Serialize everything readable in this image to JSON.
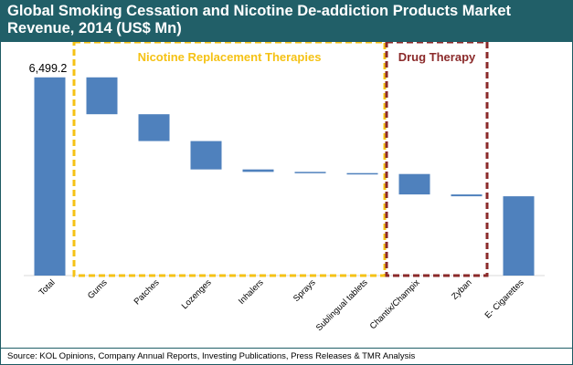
{
  "title": {
    "line1": "Global Smoking Cessation and Nicotine De-addiction Products Market",
    "line2": "Revenue, 2014 (US$ Mn)"
  },
  "source": "Source: KOL Opinions, Company Annual Reports, Investing Publications, Press Releases & TMR Analysis",
  "colors": {
    "bar": "#4f81bd",
    "title_bg": "#215f68",
    "nrt_box": "#f5c215",
    "drug_box": "#8b2a2a"
  },
  "groups": [
    {
      "label": "Nicotine Replacement Therapies",
      "color": "#f5c215",
      "from": "Gums",
      "to": "Sublingual tablets"
    },
    {
      "label": "Drug Therapy",
      "color": "#8b2a2a",
      "from": "Chantix/Champix",
      "to": "Zyban"
    }
  ],
  "chart_data": {
    "type": "bar",
    "subtype": "waterfall",
    "categories": [
      "Total",
      "Gums",
      "Patches",
      "Lozenges",
      "Inhalers",
      "Sprays",
      "Sublingual tablets",
      "Chantix/Champix",
      "Zyban",
      "E- Cigarettes"
    ],
    "segments": [
      {
        "category": "Total",
        "start": 0,
        "end": 6499.2
      },
      {
        "category": "Gums",
        "start": 6499.2,
        "end": 5290
      },
      {
        "category": "Patches",
        "start": 5290,
        "end": 4410
      },
      {
        "category": "Lozenges",
        "start": 4410,
        "end": 3480
      },
      {
        "category": "Inhalers",
        "start": 3480,
        "end": 3400
      },
      {
        "category": "Sprays",
        "start": 3400,
        "end": 3360
      },
      {
        "category": "Sublingual tablets",
        "start": 3360,
        "end": 3320
      },
      {
        "category": "Chantix/Champix",
        "start": 3330,
        "end": 2660
      },
      {
        "category": "Zyban",
        "start": 2660,
        "end": 2600
      },
      {
        "category": "E- Cigarettes",
        "start": 2600,
        "end": 0
      }
    ],
    "data_labels": [
      {
        "category": "Total",
        "text": "6,499.2"
      }
    ],
    "ylim": [
      0,
      7300
    ],
    "grid": false,
    "legend": "none"
  }
}
